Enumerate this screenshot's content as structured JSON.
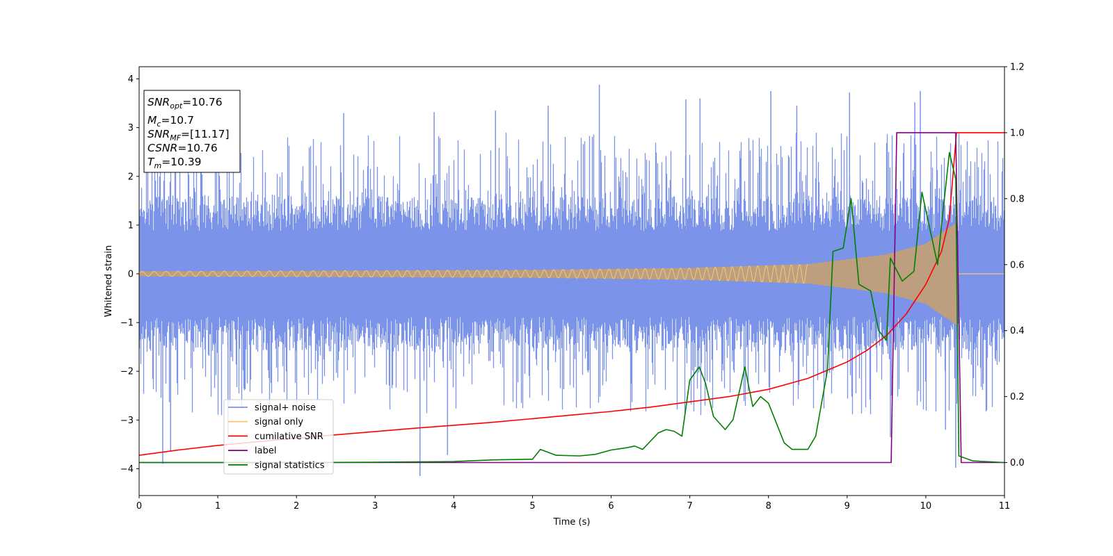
{
  "chart_data": {
    "type": "line",
    "xlabel": "Time (s)",
    "ylabel": "Whitened strain",
    "xlim": [
      0,
      11
    ],
    "ylim_left": [
      -4.55,
      4.25
    ],
    "ylim_right": [
      -0.1,
      1.2
    ],
    "x_ticks": [
      0,
      1,
      2,
      3,
      4,
      5,
      6,
      7,
      8,
      9,
      10,
      11
    ],
    "y_left_ticks": [
      -4,
      -3,
      -2,
      -1,
      0,
      1,
      2,
      3,
      4
    ],
    "y_right_ticks": [
      0.0,
      0.2,
      0.4,
      0.6,
      0.8,
      1.0,
      1.2
    ],
    "tick_labels": {
      "x": [
        "0",
        "1",
        "2",
        "3",
        "4",
        "5",
        "6",
        "7",
        "8",
        "9",
        "10",
        "11"
      ],
      "y_left": [
        "−4",
        "−3",
        "−2",
        "−1",
        "0",
        "1",
        "2",
        "3",
        "4"
      ],
      "y_right": [
        "0.0",
        "0.2",
        "0.4",
        "0.6",
        "0.8",
        "1.0",
        "1.2"
      ]
    },
    "legend_position": "lower left",
    "series": [
      {
        "name": "signal+ noise",
        "axis": "left",
        "color": "#7b93e8",
        "kind": "noise band",
        "typical_envelope": [
          -1.6,
          1.6
        ],
        "extreme_range": [
          -4.15,
          3.88
        ]
      },
      {
        "name": "signal only",
        "axis": "left",
        "color": "#f5c87a",
        "kind": "chirp",
        "envelope_points": [
          [
            0,
            0.05
          ],
          [
            5,
            0.08
          ],
          [
            7,
            0.12
          ],
          [
            8.5,
            0.2
          ],
          [
            9.5,
            0.4
          ],
          [
            10.0,
            0.62
          ],
          [
            10.3,
            0.95
          ],
          [
            10.39,
            1.05
          ],
          [
            10.4,
            0.0
          ],
          [
            11,
            0.0
          ]
        ]
      },
      {
        "name": "cumilative SNR",
        "axis": "right",
        "color": "#ff0000",
        "points": [
          [
            0,
            0.022
          ],
          [
            0.5,
            0.038
          ],
          [
            1,
            0.052
          ],
          [
            1.5,
            0.063
          ],
          [
            2,
            0.074
          ],
          [
            2.5,
            0.084
          ],
          [
            3,
            0.094
          ],
          [
            3.5,
            0.104
          ],
          [
            4,
            0.113
          ],
          [
            4.5,
            0.122
          ],
          [
            5,
            0.133
          ],
          [
            5.5,
            0.144
          ],
          [
            6,
            0.155
          ],
          [
            6.5,
            0.168
          ],
          [
            7,
            0.184
          ],
          [
            7.5,
            0.2
          ],
          [
            8,
            0.222
          ],
          [
            8.5,
            0.255
          ],
          [
            9,
            0.305
          ],
          [
            9.25,
            0.34
          ],
          [
            9.5,
            0.385
          ],
          [
            9.75,
            0.45
          ],
          [
            10,
            0.54
          ],
          [
            10.2,
            0.64
          ],
          [
            10.3,
            0.74
          ],
          [
            10.39,
            1.0
          ],
          [
            11,
            1.0
          ]
        ]
      },
      {
        "name": "label",
        "axis": "right",
        "color": "#800080",
        "points": [
          [
            0,
            0.0
          ],
          [
            9.56,
            0.0
          ],
          [
            9.63,
            1.0
          ],
          [
            10.38,
            1.0
          ],
          [
            10.45,
            0.0
          ],
          [
            11,
            0.0
          ]
        ]
      },
      {
        "name": "signal statistics",
        "axis": "right",
        "color": "#008000",
        "points": [
          [
            0,
            0.0
          ],
          [
            1,
            0.0
          ],
          [
            2,
            0.0
          ],
          [
            3,
            0.001
          ],
          [
            3.5,
            0.002
          ],
          [
            4,
            0.003
          ],
          [
            4.5,
            0.008
          ],
          [
            5,
            0.01
          ],
          [
            5.1,
            0.04
          ],
          [
            5.3,
            0.022
          ],
          [
            5.6,
            0.02
          ],
          [
            5.8,
            0.025
          ],
          [
            6.0,
            0.038
          ],
          [
            6.2,
            0.045
          ],
          [
            6.3,
            0.05
          ],
          [
            6.4,
            0.04
          ],
          [
            6.5,
            0.065
          ],
          [
            6.6,
            0.09
          ],
          [
            6.7,
            0.1
          ],
          [
            6.8,
            0.095
          ],
          [
            6.9,
            0.08
          ],
          [
            7.0,
            0.25
          ],
          [
            7.12,
            0.29
          ],
          [
            7.2,
            0.24
          ],
          [
            7.3,
            0.14
          ],
          [
            7.45,
            0.1
          ],
          [
            7.55,
            0.13
          ],
          [
            7.7,
            0.29
          ],
          [
            7.8,
            0.17
          ],
          [
            7.9,
            0.2
          ],
          [
            8.0,
            0.18
          ],
          [
            8.1,
            0.12
          ],
          [
            8.2,
            0.06
          ],
          [
            8.3,
            0.04
          ],
          [
            8.5,
            0.04
          ],
          [
            8.6,
            0.08
          ],
          [
            8.75,
            0.28
          ],
          [
            8.82,
            0.64
          ],
          [
            8.95,
            0.65
          ],
          [
            9.05,
            0.8
          ],
          [
            9.15,
            0.54
          ],
          [
            9.3,
            0.52
          ],
          [
            9.4,
            0.4
          ],
          [
            9.5,
            0.37
          ],
          [
            9.55,
            0.62
          ],
          [
            9.7,
            0.55
          ],
          [
            9.85,
            0.58
          ],
          [
            9.95,
            0.82
          ],
          [
            10.05,
            0.71
          ],
          [
            10.15,
            0.6
          ],
          [
            10.2,
            0.72
          ],
          [
            10.3,
            0.94
          ],
          [
            10.38,
            0.86
          ],
          [
            10.42,
            0.02
          ],
          [
            10.6,
            0.005
          ],
          [
            11,
            0.0
          ]
        ]
      }
    ]
  },
  "annotation": {
    "lines": [
      {
        "var": "SNR",
        "sub": "opt",
        "text": "=10.76"
      },
      {
        "var": "M",
        "sub": "c",
        "text": "=10.7"
      },
      {
        "var": "SNR",
        "sub": "MF",
        "text": "=[11.17]"
      },
      {
        "var": "CSNR",
        "sub": "",
        "text": "=10.76"
      },
      {
        "var": "T",
        "sub": "m",
        "text": "=10.39"
      }
    ]
  }
}
